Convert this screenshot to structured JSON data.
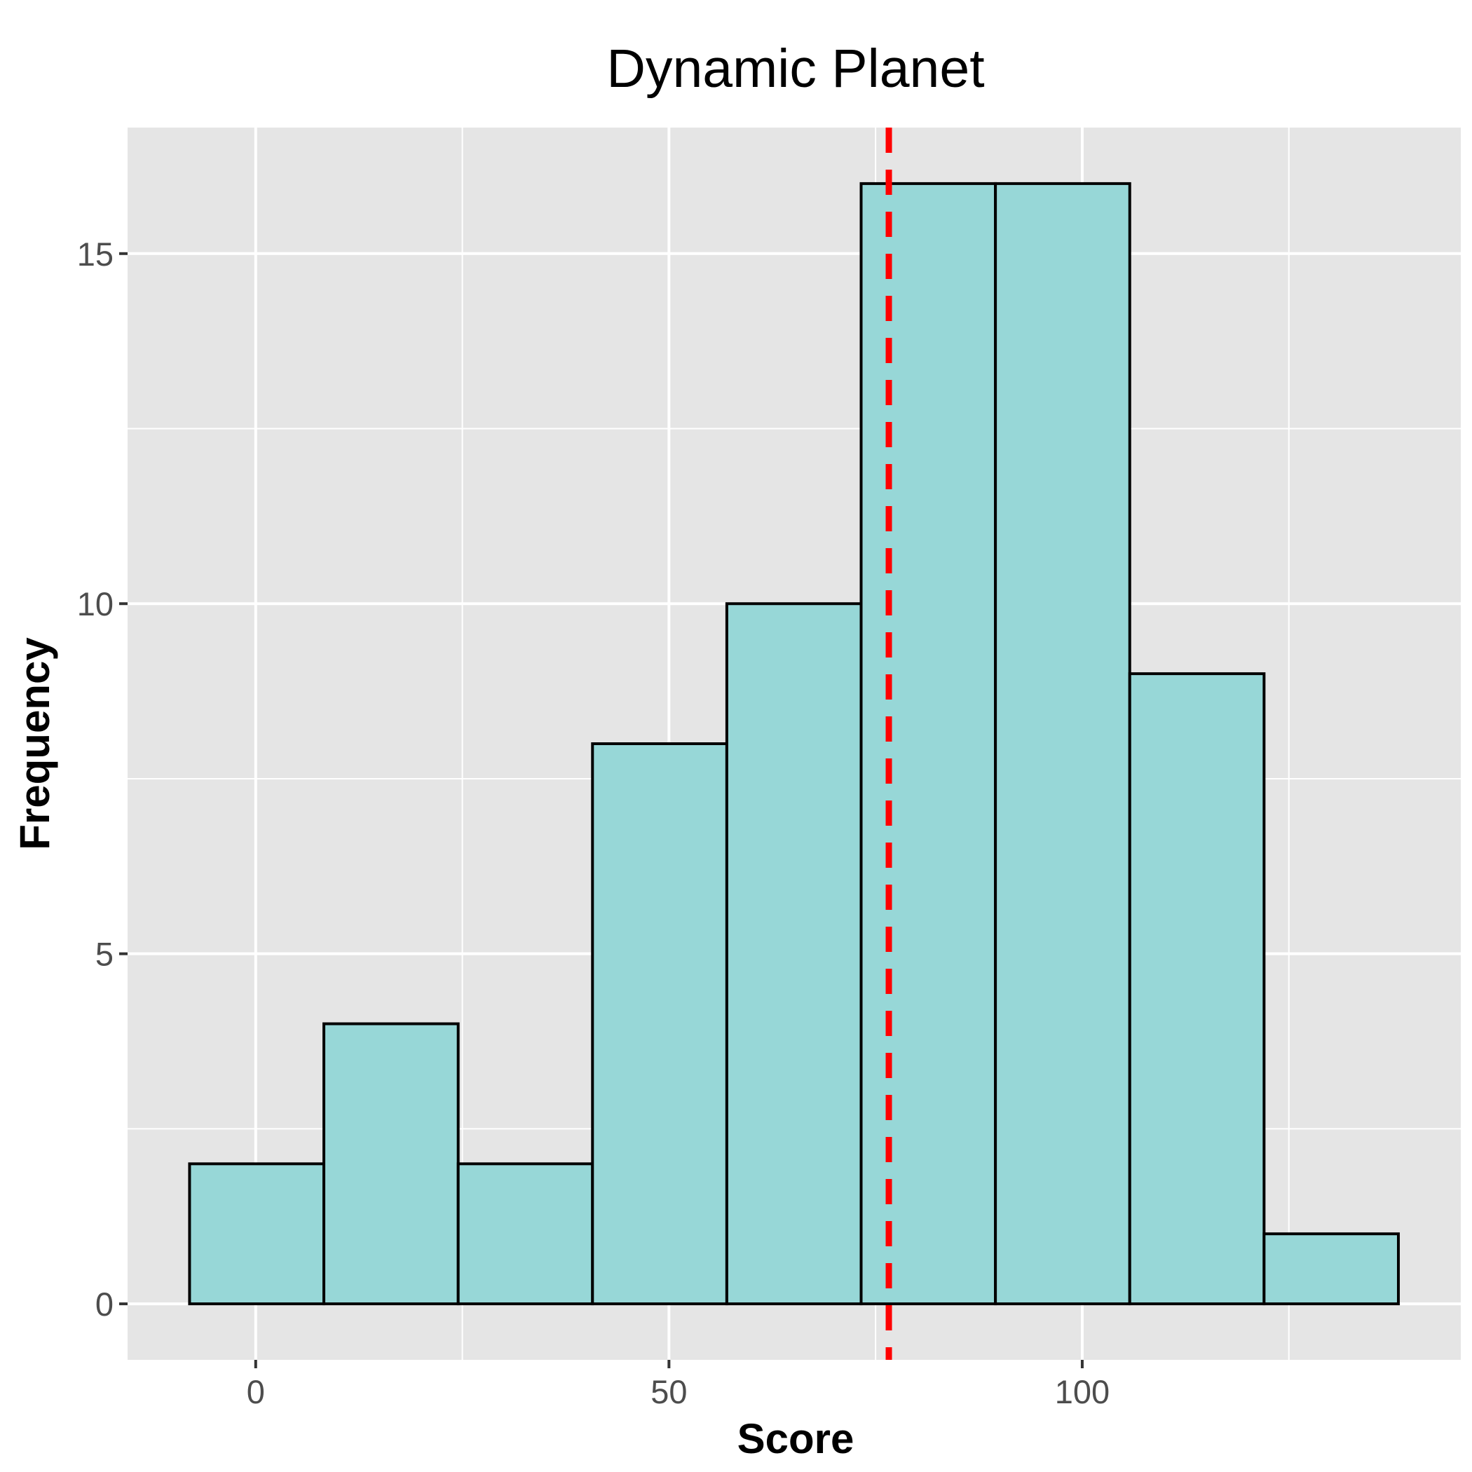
{
  "chart_data": {
    "type": "bar",
    "title": "Dynamic Planet",
    "xlabel": "Score",
    "ylabel": "Frequency",
    "bins": [
      {
        "x0": -8,
        "x1": 8.25,
        "count": 2
      },
      {
        "x0": 8.25,
        "x1": 24.5,
        "count": 4
      },
      {
        "x0": 24.5,
        "x1": 40.75,
        "count": 2
      },
      {
        "x0": 40.75,
        "x1": 57,
        "count": 8
      },
      {
        "x0": 57,
        "x1": 73.25,
        "count": 10
      },
      {
        "x0": 73.25,
        "x1": 89.5,
        "count": 16
      },
      {
        "x0": 89.5,
        "x1": 105.75,
        "count": 16
      },
      {
        "x0": 105.75,
        "x1": 122,
        "count": 9
      },
      {
        "x0": 122,
        "x1": 138.25,
        "count": 1
      }
    ],
    "mean_line": {
      "x": 76.6,
      "color": "#ff0000",
      "style": "dashed"
    },
    "xlim": [
      -15.5,
      145.8
    ],
    "ylim": [
      -0.8,
      16.8
    ],
    "x_ticks": [
      0,
      50,
      100
    ],
    "y_ticks": [
      0,
      5,
      10,
      15
    ],
    "grid": true,
    "colors": {
      "bar_fill": "#97d7d7",
      "bar_stroke": "#000000",
      "panel_background": "#e5e5e5",
      "grid": "#ffffff"
    }
  }
}
